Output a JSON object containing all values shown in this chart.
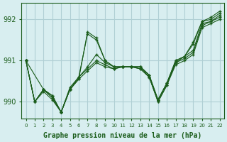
{
  "xlabel": "Graphe pression niveau de la mer (hPa)",
  "background_color": "#d8eef0",
  "grid_color": "#b0cfd4",
  "line_color": "#1a5c1a",
  "ylim": [
    989.6,
    992.4
  ],
  "xlim": [
    -0.5,
    22.5
  ],
  "yticks": [
    990,
    991,
    992
  ],
  "series": [
    {
      "x": [
        0,
        1,
        2,
        3,
        4,
        5,
        6,
        7,
        8,
        9,
        10,
        11,
        12,
        13,
        14,
        15,
        16,
        17,
        18,
        19,
        20,
        21,
        22
      ],
      "y": [
        991.0,
        990.0,
        990.3,
        990.15,
        989.75,
        990.3,
        990.55,
        991.7,
        991.55,
        991.0,
        990.85,
        990.85,
        990.85,
        990.85,
        990.65,
        990.05,
        990.45,
        990.95,
        991.1,
        991.45,
        991.95,
        992.05,
        992.2
      ]
    },
    {
      "x": [
        0,
        1,
        2,
        3,
        4,
        5,
        6,
        7,
        8,
        9,
        10,
        11,
        12,
        13,
        14,
        15,
        16,
        17,
        18,
        19,
        20,
        21,
        22
      ],
      "y": [
        991.0,
        990.0,
        990.3,
        990.15,
        989.75,
        990.35,
        990.6,
        990.85,
        991.15,
        990.95,
        990.85,
        990.85,
        990.85,
        990.85,
        990.65,
        990.05,
        990.45,
        991.0,
        991.1,
        991.25,
        991.9,
        991.95,
        992.1
      ]
    },
    {
      "x": [
        0,
        1,
        2,
        3,
        4,
        5,
        6,
        7,
        8,
        9,
        10,
        11,
        12,
        13,
        14,
        15,
        16,
        17,
        18,
        19,
        20,
        21,
        22
      ],
      "y": [
        991.0,
        990.0,
        990.3,
        990.1,
        989.75,
        990.3,
        990.6,
        990.8,
        991.0,
        990.9,
        990.8,
        990.85,
        990.85,
        990.85,
        990.6,
        990.0,
        990.4,
        990.95,
        991.05,
        991.2,
        991.85,
        991.95,
        992.05
      ]
    },
    {
      "x": [
        0,
        1,
        2,
        3,
        4,
        5,
        6,
        7,
        8,
        9,
        10,
        11,
        12,
        13,
        14,
        15,
        16,
        17,
        18,
        19,
        20,
        21,
        22
      ],
      "y": [
        991.0,
        990.0,
        990.25,
        990.05,
        989.75,
        990.3,
        990.55,
        990.75,
        990.95,
        990.85,
        990.8,
        990.85,
        990.85,
        990.8,
        990.6,
        990.0,
        990.4,
        990.9,
        991.0,
        991.15,
        991.8,
        991.9,
        992.0
      ]
    },
    {
      "x": [
        0,
        2,
        3,
        4,
        5,
        6,
        7,
        8,
        9,
        10,
        11,
        12,
        13,
        14,
        15,
        16,
        17,
        18,
        19,
        20,
        21,
        22
      ],
      "y": [
        991.0,
        990.3,
        990.1,
        989.75,
        990.3,
        990.6,
        991.65,
        991.5,
        991.0,
        990.85,
        990.85,
        990.85,
        990.8,
        990.6,
        990.05,
        990.45,
        991.0,
        991.1,
        991.4,
        991.95,
        992.0,
        992.15
      ]
    }
  ]
}
